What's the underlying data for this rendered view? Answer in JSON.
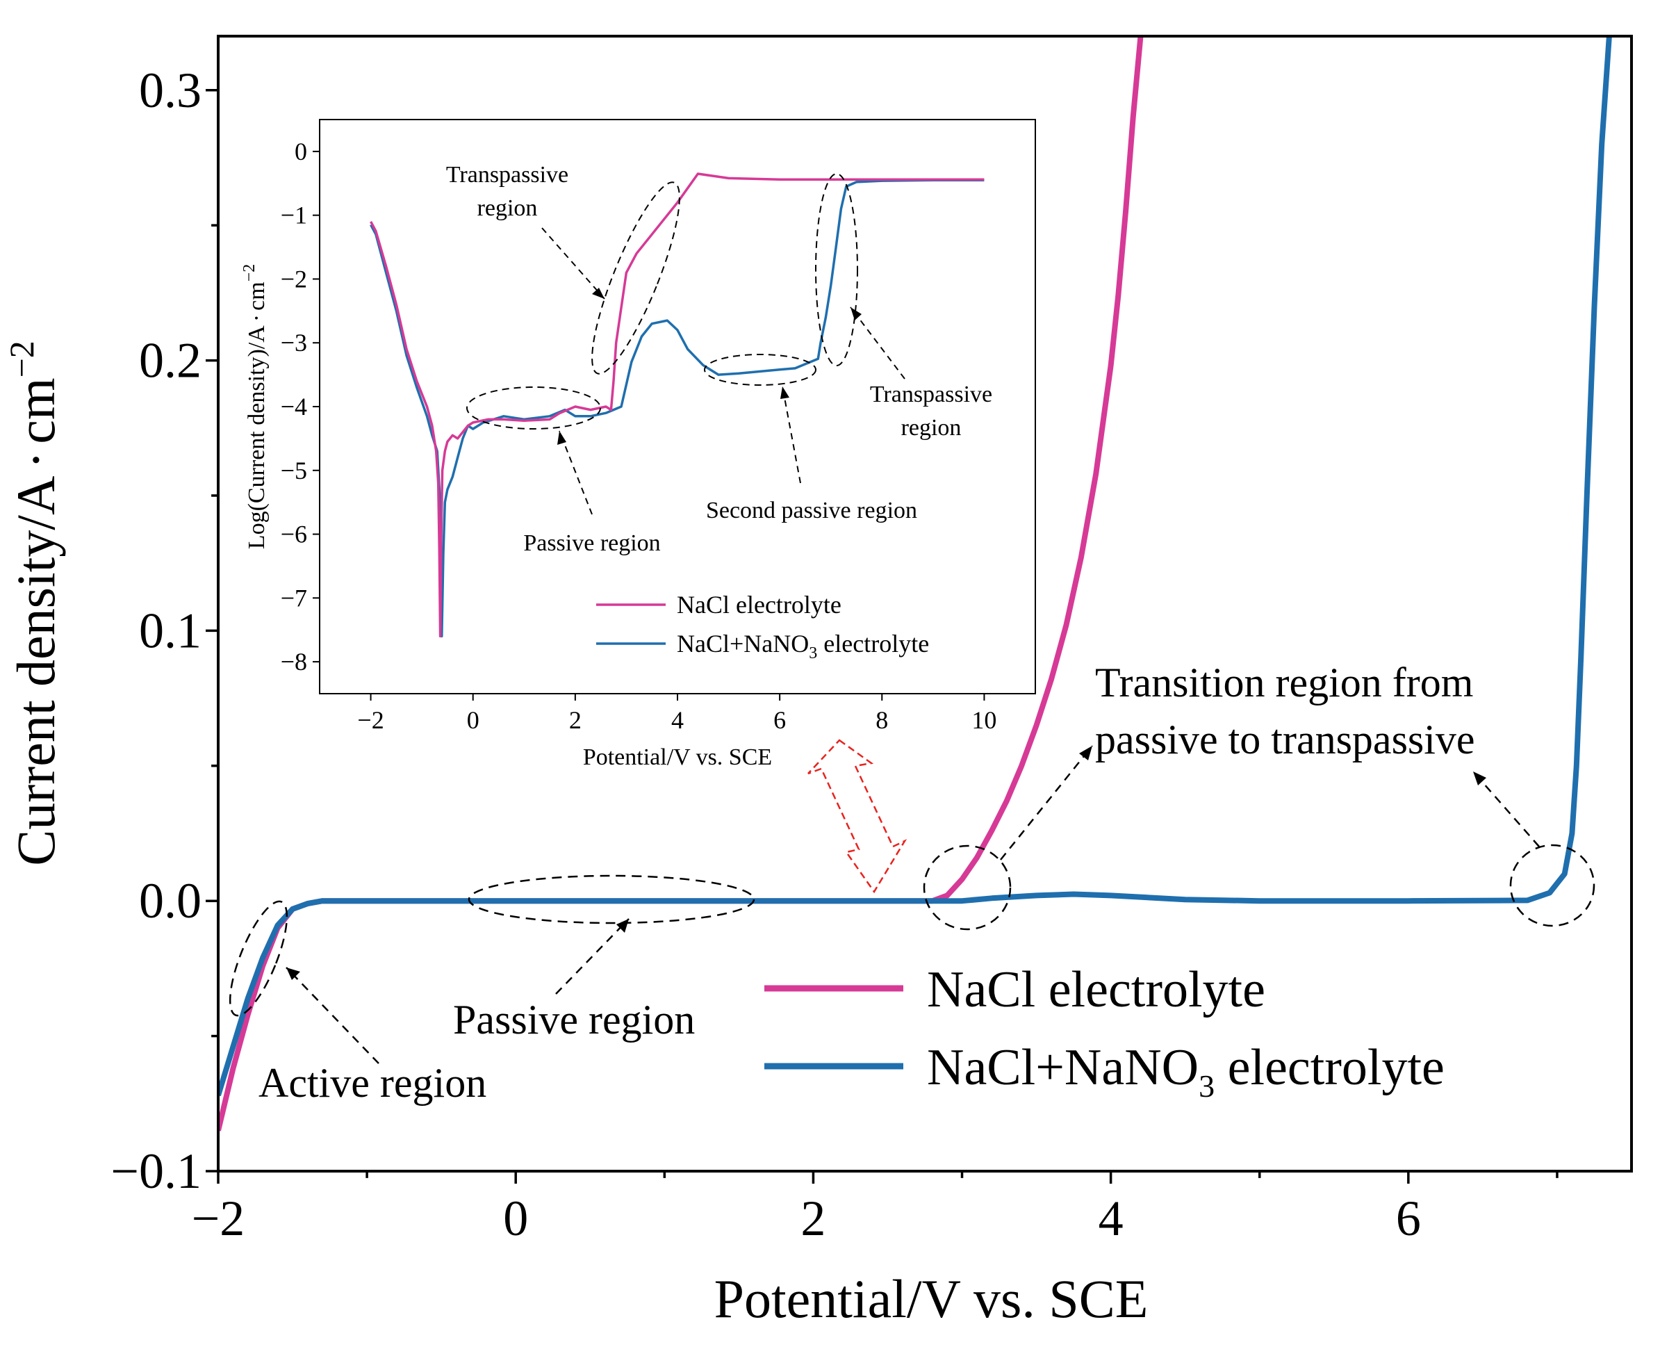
{
  "chart_data": [
    {
      "type": "line",
      "name": "main-plot",
      "xlabel": "Potential/V vs. SCE",
      "ylabel_base": "Current density/A",
      "ylabel_dot": "·",
      "ylabel_unit": "cm",
      "ylabel_exp": "−2",
      "xlim": [
        -2,
        7.5
      ],
      "ylim": [
        -0.1,
        0.32
      ],
      "xticks": [
        -2,
        0,
        2,
        4,
        6
      ],
      "xtick_labels": [
        "−2",
        "0",
        "2",
        "4",
        "6"
      ],
      "xticks_minor": [
        -1,
        1,
        3,
        5,
        7
      ],
      "yticks": [
        -0.1,
        0.0,
        0.1,
        0.2,
        0.3
      ],
      "ytick_labels": [
        "−0.1",
        "0.0",
        "0.1",
        "0.2",
        "0.3"
      ],
      "yticks_minor": [
        -0.05,
        0.05,
        0.15,
        0.25
      ],
      "series": [
        {
          "name": "NaCl electrolyte",
          "color": "#d63a96",
          "x": [
            -2.0,
            -1.9,
            -1.8,
            -1.7,
            -1.6,
            -1.5,
            -1.4,
            -1.3,
            -1.0,
            0.0,
            1.0,
            2.0,
            2.5,
            2.8,
            2.9,
            3.0,
            3.1,
            3.2,
            3.3,
            3.4,
            3.5,
            3.6,
            3.7,
            3.8,
            3.9,
            4.0,
            4.05,
            4.1,
            4.15,
            4.2
          ],
          "y": [
            -0.085,
            -0.062,
            -0.042,
            -0.024,
            -0.01,
            -0.003,
            -0.001,
            0.0,
            0.0,
            0.0,
            0.0,
            0.0,
            0.0,
            0.0,
            0.002,
            0.008,
            0.016,
            0.026,
            0.037,
            0.05,
            0.065,
            0.082,
            0.102,
            0.127,
            0.158,
            0.198,
            0.224,
            0.255,
            0.29,
            0.32
          ]
        },
        {
          "name": "NaCl+NaNO3 electrolyte",
          "color": "#1f6fae",
          "x": [
            -2.0,
            -1.9,
            -1.8,
            -1.7,
            -1.6,
            -1.5,
            -1.4,
            -1.3,
            -1.0,
            0.0,
            1.0,
            2.0,
            2.8,
            3.0,
            3.2,
            3.5,
            3.75,
            4.0,
            4.5,
            5.0,
            6.0,
            6.8,
            6.95,
            7.05,
            7.1,
            7.13,
            7.16,
            7.2,
            7.25,
            7.3,
            7.35
          ],
          "y": [
            -0.072,
            -0.054,
            -0.036,
            -0.021,
            -0.009,
            -0.003,
            -0.001,
            0.0,
            0.0,
            0.0,
            0.0,
            0.0,
            0.0,
            0.0,
            0.001,
            0.002,
            0.0025,
            0.002,
            0.0005,
            0.0,
            0.0,
            0.0002,
            0.003,
            0.01,
            0.025,
            0.05,
            0.09,
            0.15,
            0.22,
            0.28,
            0.32
          ]
        }
      ],
      "legend": {
        "placement": "lower-right",
        "entries": [
          {
            "label": "NaCl electrolyte",
            "color": "#d63a96"
          },
          {
            "label_main": "NaCl+NaNO",
            "label_sub": "3",
            "label_tail": " electrolyte",
            "color": "#1f6fae"
          }
        ]
      },
      "annotations": {
        "active": "Active region",
        "passive": "Passive region",
        "transition_line1": "Transition region from",
        "transition_line2": "passive to transpassive"
      }
    },
    {
      "type": "line",
      "name": "inset-plot",
      "xlabel": "Potential/V vs. SCE",
      "ylabel_base": "Log(Current density)/A",
      "ylabel_dot": "·",
      "ylabel_unit": "cm",
      "ylabel_exp": "−2",
      "xlim": [
        -3,
        11
      ],
      "ylim": [
        -8.5,
        0.5
      ],
      "xticks": [
        -2,
        0,
        2,
        4,
        6,
        8,
        10
      ],
      "xtick_labels": [
        "−2",
        "0",
        "2",
        "4",
        "6",
        "8",
        "10"
      ],
      "yticks": [
        0,
        -1,
        -2,
        -3,
        -4,
        -5,
        -6,
        -7,
        -8
      ],
      "ytick_labels": [
        "0",
        "−1",
        "−2",
        "−3",
        "−4",
        "−5",
        "−6",
        "−7",
        "−8"
      ],
      "series": [
        {
          "name": "NaCl electrolyte",
          "color": "#d63a96",
          "x": [
            -2.0,
            -1.9,
            -1.7,
            -1.5,
            -1.3,
            -1.1,
            -0.9,
            -0.8,
            -0.72,
            -0.68,
            -0.66,
            -0.64,
            -0.62,
            -0.6,
            -0.55,
            -0.5,
            -0.4,
            -0.3,
            -0.2,
            -0.1,
            0.0,
            0.3,
            0.6,
            1.0,
            1.5,
            1.7,
            2.0,
            2.3,
            2.6,
            2.7,
            2.75,
            2.8,
            3.0,
            3.2,
            3.5,
            4.0,
            4.4,
            5.0,
            6.0,
            7.0,
            8.0,
            9.0,
            10.0
          ],
          "y": [
            -1.1,
            -1.25,
            -1.8,
            -2.4,
            -3.1,
            -3.6,
            -4.0,
            -4.3,
            -4.7,
            -5.2,
            -6.2,
            -7.6,
            -6.0,
            -5.0,
            -4.7,
            -4.55,
            -4.45,
            -4.5,
            -4.4,
            -4.3,
            -4.25,
            -4.2,
            -4.2,
            -4.22,
            -4.2,
            -4.1,
            -4.0,
            -4.05,
            -4.0,
            -4.05,
            -3.6,
            -3.0,
            -1.9,
            -1.6,
            -1.3,
            -0.8,
            -0.35,
            -0.42,
            -0.44,
            -0.44,
            -0.44,
            -0.44,
            -0.44
          ]
        },
        {
          "name": "NaCl+NaNO3 electrolyte",
          "color": "#1f6fae",
          "x": [
            -2.0,
            -1.9,
            -1.7,
            -1.5,
            -1.3,
            -1.1,
            -0.9,
            -0.8,
            -0.7,
            -0.65,
            -0.63,
            -0.61,
            -0.58,
            -0.55,
            -0.5,
            -0.4,
            -0.3,
            -0.2,
            -0.1,
            0.0,
            0.2,
            0.4,
            0.6,
            1.0,
            1.5,
            1.8,
            2.0,
            2.3,
            2.6,
            2.9,
            3.1,
            3.3,
            3.5,
            3.8,
            4.0,
            4.2,
            4.5,
            4.8,
            5.2,
            5.6,
            6.0,
            6.3,
            6.6,
            6.75,
            6.8,
            6.9,
            7.0,
            7.1,
            7.2,
            7.3,
            7.5,
            8.0,
            9.0,
            10.0
          ],
          "y": [
            -1.15,
            -1.3,
            -1.9,
            -2.5,
            -3.2,
            -3.7,
            -4.15,
            -4.45,
            -4.7,
            -5.4,
            -6.5,
            -7.6,
            -6.3,
            -5.5,
            -5.3,
            -5.1,
            -4.8,
            -4.5,
            -4.3,
            -4.35,
            -4.25,
            -4.2,
            -4.15,
            -4.2,
            -4.15,
            -4.05,
            -4.15,
            -4.15,
            -4.1,
            -4.0,
            -3.3,
            -2.9,
            -2.7,
            -2.65,
            -2.8,
            -3.1,
            -3.35,
            -3.5,
            -3.48,
            -3.45,
            -3.42,
            -3.4,
            -3.3,
            -3.25,
            -3.0,
            -2.6,
            -2.1,
            -1.5,
            -0.9,
            -0.55,
            -0.48,
            -0.46,
            -0.45,
            -0.45
          ]
        }
      ],
      "legend": {
        "placement": "lower-right",
        "entries": [
          {
            "label": "NaCl electrolyte",
            "color": "#d63a96"
          },
          {
            "label_main": "NaCl+NaNO",
            "label_sub": "3",
            "label_tail": " electrolyte",
            "color": "#1f6fae"
          }
        ]
      },
      "annotations": {
        "transpassive_left_line1": "Transpassive",
        "transpassive_left_line2": "region",
        "transpassive_right_line1": "Transpassive",
        "transpassive_right_line2": "region",
        "passive": "Passive region",
        "second_passive": "Second passive region"
      }
    }
  ]
}
